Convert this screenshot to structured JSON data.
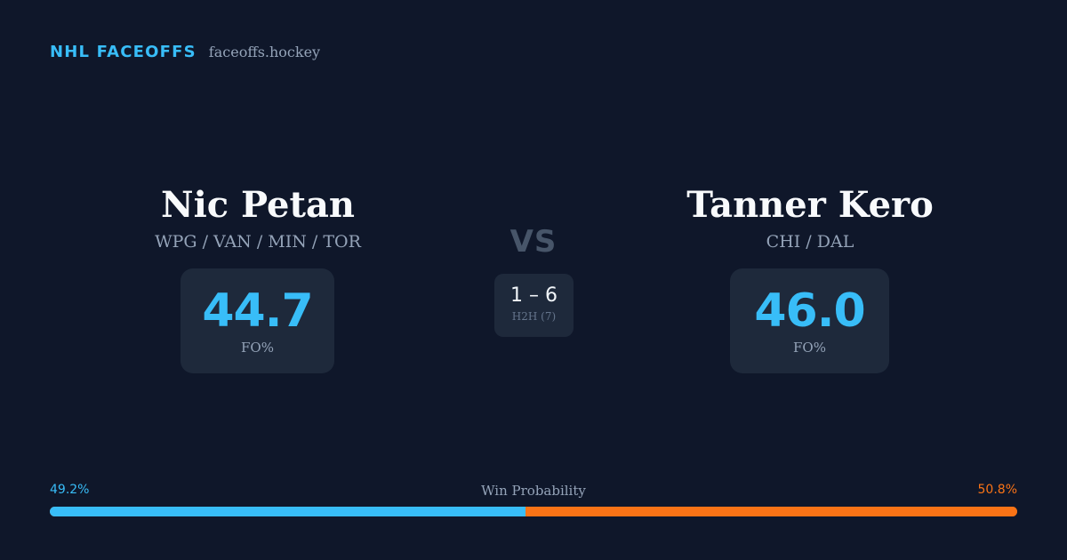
{
  "brand": {
    "name": "NHL FACEOFFS",
    "site": "faceoffs.hockey"
  },
  "players": [
    {
      "name": "Nic Petan",
      "teams": "WPG / VAN / MIN / TOR",
      "fo_value": "44.7",
      "fo_label": "FO%"
    },
    {
      "name": "Tanner Kero",
      "teams": "CHI / DAL",
      "fo_value": "46.0",
      "fo_label": "FO%"
    }
  ],
  "vs_label": "VS",
  "h2h": {
    "score": "1 – 6",
    "label": "H2H (7)"
  },
  "win_probability": {
    "title": "Win Probability",
    "left_label": "49.2%",
    "right_label": "50.8%",
    "left_fraction": 0.492,
    "right_fraction": 0.508
  },
  "colors": {
    "accent_left": "#38bdf8",
    "accent_right": "#f97316",
    "background": "#0f172a",
    "card": "#1e293b"
  }
}
